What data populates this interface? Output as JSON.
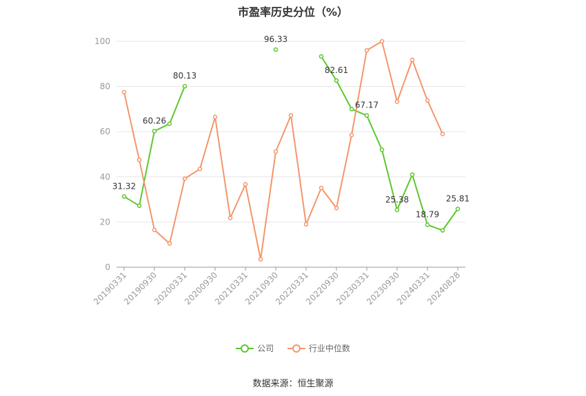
{
  "chart_data": {
    "type": "line",
    "title": "市盈率历史分位（%）",
    "ylim": [
      0,
      100
    ],
    "yticks": [
      0,
      20,
      40,
      60,
      80,
      100
    ],
    "x": [
      "20190331",
      "20190630",
      "20190930",
      "20191231",
      "20200331",
      "20200630",
      "20200930",
      "20201231",
      "20210331",
      "20210630",
      "20210930",
      "20211231",
      "20220331",
      "20220630",
      "20220930",
      "20221231",
      "20230331",
      "20230630",
      "20230930",
      "20231231",
      "20240331",
      "20240630",
      "20240828"
    ],
    "tick_labels": [
      "20190331",
      "20190930",
      "20200331",
      "20200930",
      "20210331",
      "20210930",
      "20220331",
      "20220930",
      "20230331",
      "20230930",
      "20240331",
      "20240828"
    ],
    "tick_indices": [
      0,
      2,
      4,
      6,
      8,
      10,
      12,
      14,
      16,
      18,
      20,
      22
    ],
    "series": [
      {
        "name": "公司",
        "color": "#5cc72c",
        "values": [
          31.32,
          27.2,
          60.26,
          63.5,
          80.13,
          null,
          null,
          null,
          null,
          null,
          96.33,
          null,
          null,
          93.3,
          82.61,
          70.0,
          67.17,
          52.0,
          25.38,
          41.0,
          18.79,
          16.3,
          25.81
        ],
        "labels": [
          {
            "index": 0,
            "text": "31.32"
          },
          {
            "index": 2,
            "text": "60.26"
          },
          {
            "index": 4,
            "text": "80.13"
          },
          {
            "index": 10,
            "text": "96.33"
          },
          {
            "index": 14,
            "text": "82.61"
          },
          {
            "index": 16,
            "text": "67.17"
          },
          {
            "index": 18,
            "text": "25.38"
          },
          {
            "index": 20,
            "text": "18.79"
          },
          {
            "index": 22,
            "text": "25.81"
          }
        ]
      },
      {
        "name": "行业中位数",
        "color": "#f4956a",
        "values": [
          77.5,
          47.5,
          16.5,
          10.5,
          39.2,
          43.5,
          66.5,
          21.8,
          36.7,
          3.5,
          51.2,
          67.2,
          19.0,
          35.1,
          26.2,
          58.5,
          96.0,
          100.0,
          73.3,
          91.8,
          73.8,
          59.0,
          null
        ],
        "labels": []
      }
    ],
    "legend_position": "bottom",
    "source": "数据来源：恒生聚源"
  }
}
